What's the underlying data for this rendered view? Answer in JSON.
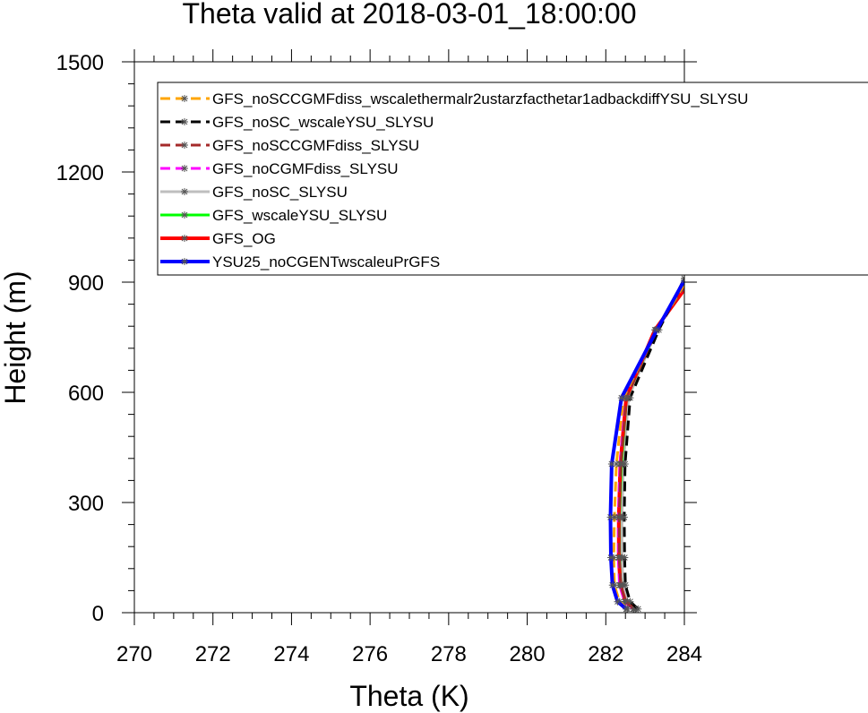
{
  "chart_data": {
    "type": "line",
    "title": "Theta valid at 2018-03-01_18:00:00",
    "xlabel": "Theta (K)",
    "ylabel": "Height (m)",
    "xlim": [
      270,
      284
    ],
    "ylim": [
      0,
      1500
    ],
    "xticks": [
      "270",
      "272",
      "274",
      "276",
      "278",
      "280",
      "282",
      "284"
    ],
    "yticks": [
      "0",
      "300",
      "600",
      "900",
      "1200",
      "1500"
    ],
    "grid": false,
    "legend": "top-left",
    "series": [
      {
        "name": "GFS_noSCCGMFdiss_wscalethermalr2ustarzfacthetar1adbackdiffYSU_SLYSU",
        "color": "#FFA500",
        "dash": "dash",
        "x": [
          282.55,
          282.35,
          282.22,
          282.2,
          282.22,
          282.27,
          282.45,
          283.3,
          284.0
        ],
        "y": [
          10,
          30,
          75,
          150,
          260,
          405,
          585,
          770,
          895
        ]
      },
      {
        "name": "GFS_noSC_wscaleYSU_SLYSU",
        "color": "#000000",
        "dash": "dash",
        "x": [
          282.82,
          282.62,
          282.5,
          282.48,
          282.47,
          282.49,
          282.62,
          283.35,
          284.0
        ],
        "y": [
          10,
          30,
          75,
          150,
          260,
          405,
          585,
          770,
          910
        ]
      },
      {
        "name": "GFS_noSCCGMFdiss_SLYSU",
        "color": "#A52A2A",
        "dash": "dash",
        "x": [
          282.72,
          282.5,
          282.38,
          282.34,
          282.34,
          282.38,
          282.52,
          283.3,
          284.0
        ],
        "y": [
          10,
          30,
          75,
          150,
          260,
          405,
          585,
          770,
          890
        ]
      },
      {
        "name": "GFS_noCGMFdiss_SLYSU",
        "color": "#FF00FF",
        "dash": "dash",
        "x": [
          282.7,
          282.48,
          282.35,
          282.32,
          282.32,
          282.36,
          282.5,
          283.28,
          284.0
        ],
        "y": [
          10,
          30,
          75,
          150,
          260,
          405,
          585,
          770,
          890
        ]
      },
      {
        "name": "GFS_noSC_SLYSU",
        "color": "#BEBEBE",
        "dash": "solid",
        "x": [
          282.76,
          282.55,
          282.44,
          282.41,
          282.41,
          282.45,
          282.58,
          283.3,
          284.0
        ],
        "y": [
          10,
          30,
          75,
          150,
          260,
          405,
          585,
          770,
          895
        ]
      },
      {
        "name": "GFS_wscaleYSU_SLYSU",
        "color": "#00FF00",
        "dash": "solid",
        "x": [
          282.72,
          282.5,
          282.38,
          282.35,
          282.35,
          282.4,
          282.53,
          283.28,
          284.0
        ],
        "y": [
          10,
          30,
          75,
          150,
          260,
          405,
          585,
          770,
          890
        ]
      },
      {
        "name": "GFS_OG",
        "color": "#FF0000",
        "dash": "solid",
        "x": [
          282.72,
          282.5,
          282.37,
          282.33,
          282.33,
          282.37,
          282.52,
          283.25,
          284.0
        ],
        "y": [
          10,
          30,
          75,
          150,
          260,
          405,
          585,
          770,
          880
        ]
      },
      {
        "name": "YSU25_noCGENTwscaleuPrGFS",
        "color": "#0000FF",
        "dash": "solid",
        "x": [
          282.52,
          282.3,
          282.17,
          282.13,
          282.12,
          282.15,
          282.4,
          283.3,
          284.0
        ],
        "y": [
          10,
          30,
          75,
          150,
          260,
          405,
          585,
          770,
          905
        ]
      }
    ]
  }
}
